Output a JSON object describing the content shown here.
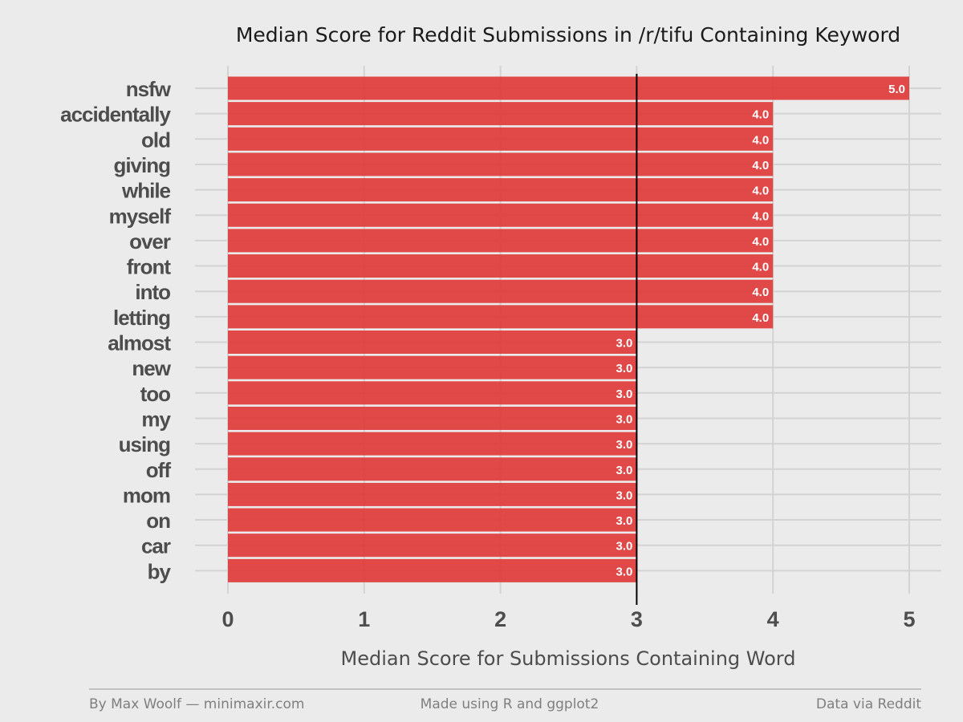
{
  "chart_data": {
    "type": "bar",
    "orientation": "horizontal",
    "title": "Median Score for Reddit Submissions in /r/tifu Containing Keyword",
    "xlabel": "Median Score for Submissions Containing Word",
    "ylabel": "",
    "categories": [
      "nsfw",
      "accidentally",
      "old",
      "giving",
      "while",
      "myself",
      "over",
      "front",
      "into",
      "letting",
      "almost",
      "new",
      "too",
      "my",
      "using",
      "off",
      "mom",
      "on",
      "car",
      "by"
    ],
    "values": [
      5.0,
      4.0,
      4.0,
      4.0,
      4.0,
      4.0,
      4.0,
      4.0,
      4.0,
      4.0,
      3.0,
      3.0,
      3.0,
      3.0,
      3.0,
      3.0,
      3.0,
      3.0,
      3.0,
      3.0
    ],
    "data_labels": [
      "5.0",
      "4.0",
      "4.0",
      "4.0",
      "4.0",
      "4.0",
      "4.0",
      "4.0",
      "4.0",
      "4.0",
      "3.0",
      "3.0",
      "3.0",
      "3.0",
      "3.0",
      "3.0",
      "3.0",
      "3.0",
      "3.0",
      "3.0"
    ],
    "xlim": [
      0,
      5
    ],
    "xticks": [
      "0",
      "1",
      "2",
      "3",
      "4",
      "5"
    ],
    "reference_line": 3,
    "grid": true,
    "legend": "none",
    "bar_color": "#e0393a",
    "reference_line_color": "#000000",
    "background_color": "#ebebeb",
    "grid_color": "#d3d3d3"
  },
  "footer": {
    "left": "By Max Woolf — minimaxir.com",
    "center": "Made using R and ggplot2",
    "right": "Data via Reddit"
  }
}
